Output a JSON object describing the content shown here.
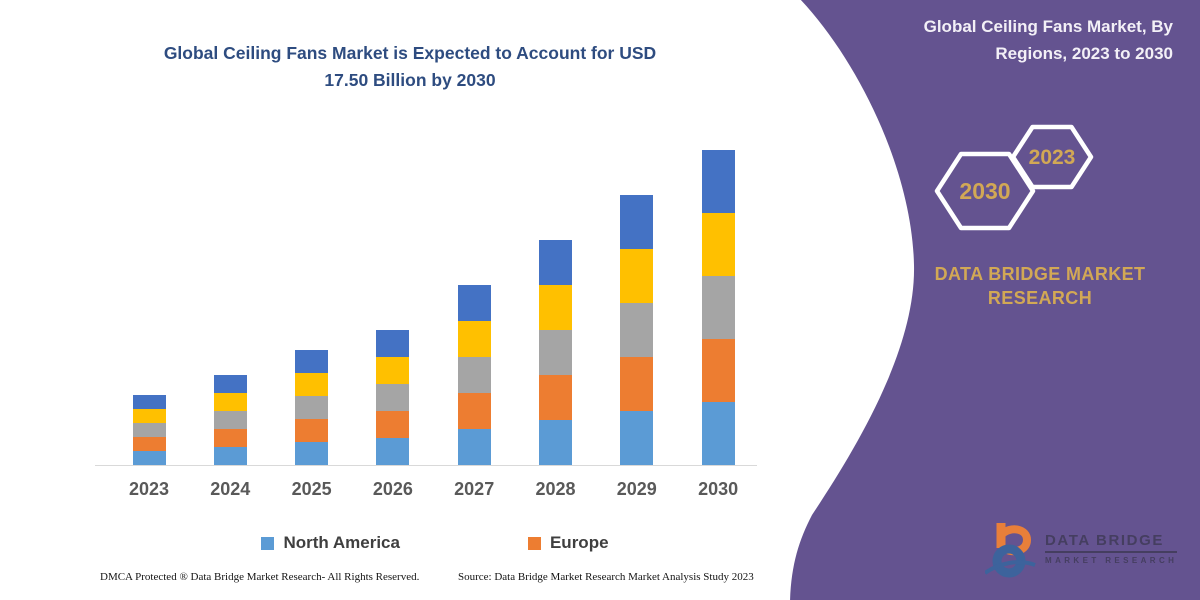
{
  "slide": {
    "background": "#FFFFFF",
    "accent_purple": "#645390",
    "accent_gold": "#D2A855",
    "title_blue": "#2E4C80"
  },
  "chart": {
    "title_line1": "Global Ceiling Fans Market is Expected to Account for USD",
    "title_line2": "17.50 Billion by 2030"
  },
  "chart_data": {
    "type": "bar",
    "stacked": true,
    "title": "Global Ceiling Fans Market is Expected to Account for USD 17.50 Billion by 2030",
    "unit": "USD Billion",
    "categories": [
      "2023",
      "2024",
      "2025",
      "2026",
      "2027",
      "2028",
      "2029",
      "2030"
    ],
    "series": [
      {
        "name": "North America",
        "color": "#5B9BD5",
        "values": [
          0.76,
          1.0,
          1.26,
          1.51,
          2.0,
          2.5,
          3.01,
          3.5
        ]
      },
      {
        "name": "Europe",
        "color": "#ED7D31",
        "values": [
          0.76,
          1.0,
          1.26,
          1.51,
          2.0,
          2.5,
          3.01,
          3.5
        ]
      },
      {
        "name": "",
        "color": "#A5A5A5",
        "values": [
          0.76,
          1.0,
          1.26,
          1.51,
          2.0,
          2.5,
          3.01,
          3.5
        ]
      },
      {
        "name": "",
        "color": "#FFC000",
        "values": [
          0.76,
          1.0,
          1.26,
          1.51,
          2.0,
          2.5,
          3.01,
          3.5
        ]
      },
      {
        "name": "",
        "color": "#4472C4",
        "values": [
          0.76,
          1.0,
          1.26,
          1.51,
          2.0,
          2.5,
          3.01,
          3.5
        ]
      }
    ],
    "totals": [
      3.8,
      5.0,
      6.3,
      7.55,
      10.0,
      12.5,
      15.05,
      17.5
    ],
    "ylim": [
      0,
      17.5
    ],
    "grid": false,
    "y_axis_shown": false,
    "legend_position": "bottom",
    "legend_labels_visible": [
      "North America",
      "Europe"
    ],
    "note": "No value axis shown; stack values estimated from bar heights scaled so the 2030 total equals USD 17.50 billion stated in the title."
  },
  "legend": {
    "items": [
      {
        "label": "North America",
        "color": "#5B9BD5"
      },
      {
        "label": "Europe",
        "color": "#ED7D31"
      }
    ]
  },
  "footer": {
    "left": "DMCA Protected ® Data Bridge Market Research-  All Rights Reserved.",
    "right": "Source: Data Bridge Market Research  Market Analysis Study 2023"
  },
  "panel": {
    "heading_line1": "Global Ceiling Fans Market, By",
    "heading_line2": "Regions, 2023 to 2030",
    "hexagons": [
      {
        "label": "2030"
      },
      {
        "label": "2023"
      }
    ],
    "brand_line1": "DATA BRIDGE MARKET",
    "brand_line2": "RESEARCH"
  },
  "watermark_logo": {
    "line1": "DATA BRIDGE",
    "line2": "MARKET RESEARCH"
  }
}
